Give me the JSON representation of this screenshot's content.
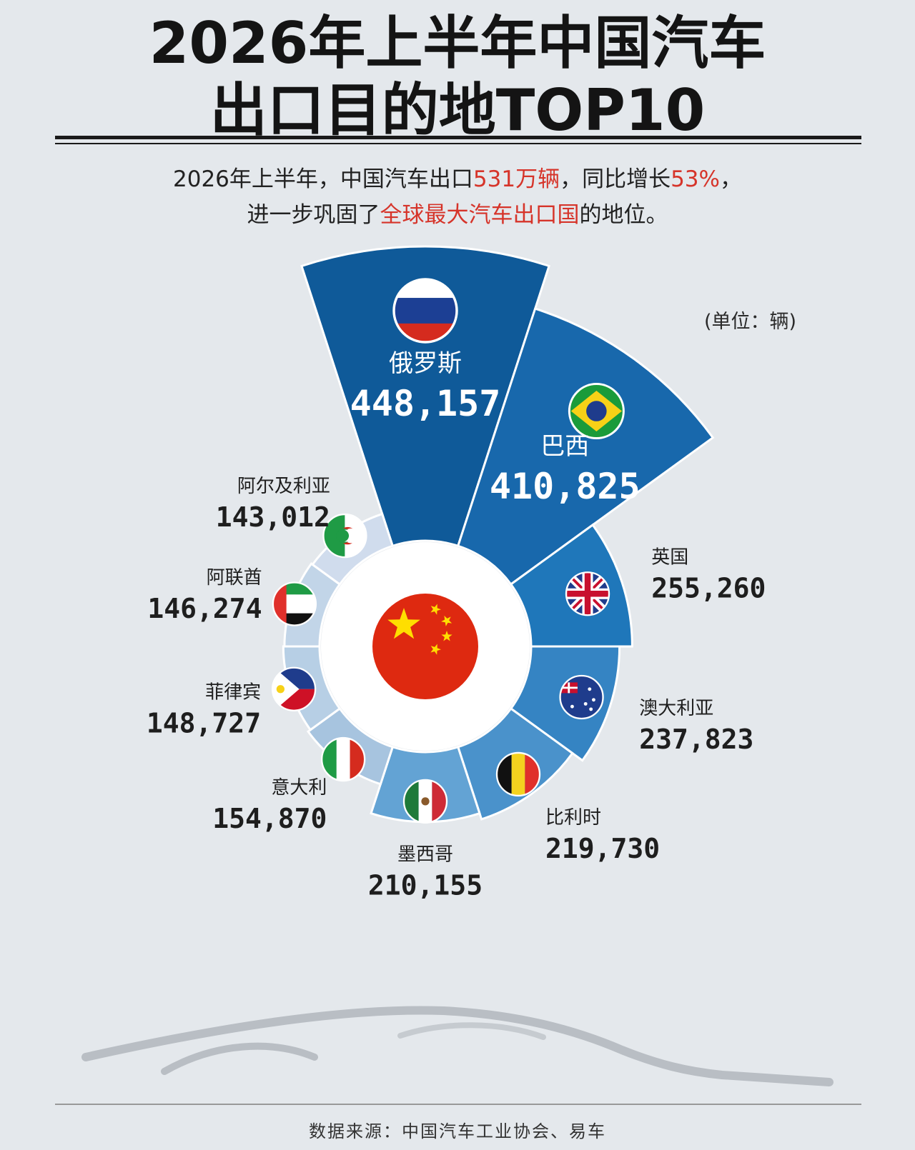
{
  "title_line1": "2026年上半年中国汽车",
  "title_line2": "出口目的地TOP10",
  "subtitle": {
    "line1_a": "2026年上半年，中国汽车出口",
    "line1_b": "531万辆",
    "line1_c": "，同比增长",
    "line1_d": "53%",
    "line1_e": "，",
    "line2_a": "进一步巩固了",
    "line2_b": "全球最大汽车出口国",
    "line2_c": "的地位。"
  },
  "unit": "(单位：辆)",
  "source": "数据来源：中国汽车工业协会、易车",
  "colors": {
    "accent": "#d6342a",
    "dark_blue": "#0f5a99"
  },
  "chart_data": {
    "type": "pie",
    "subtype": "radial-bar",
    "categories": [
      "俄罗斯",
      "巴西",
      "英国",
      "澳大利亚",
      "比利时",
      "墨西哥",
      "意大利",
      "菲律宾",
      "阿联酋",
      "阿尔及利亚"
    ],
    "values": [
      448157,
      410825,
      255260,
      237823,
      219730,
      210155,
      154870,
      148727,
      146274,
      143012
    ],
    "value_labels": [
      "448,157",
      "410,825",
      "255,260",
      "237,823",
      "219,730",
      "210,155",
      "154,870",
      "148,727",
      "146,274",
      "143,012"
    ],
    "flags": [
      "russia-flag",
      "brazil-flag",
      "uk-flag",
      "australia-flag",
      "belgium-flag",
      "mexico-flag",
      "italy-flag",
      "philippines-flag",
      "uae-flag",
      "algeria-flag"
    ],
    "center_flag": "china-flag"
  }
}
